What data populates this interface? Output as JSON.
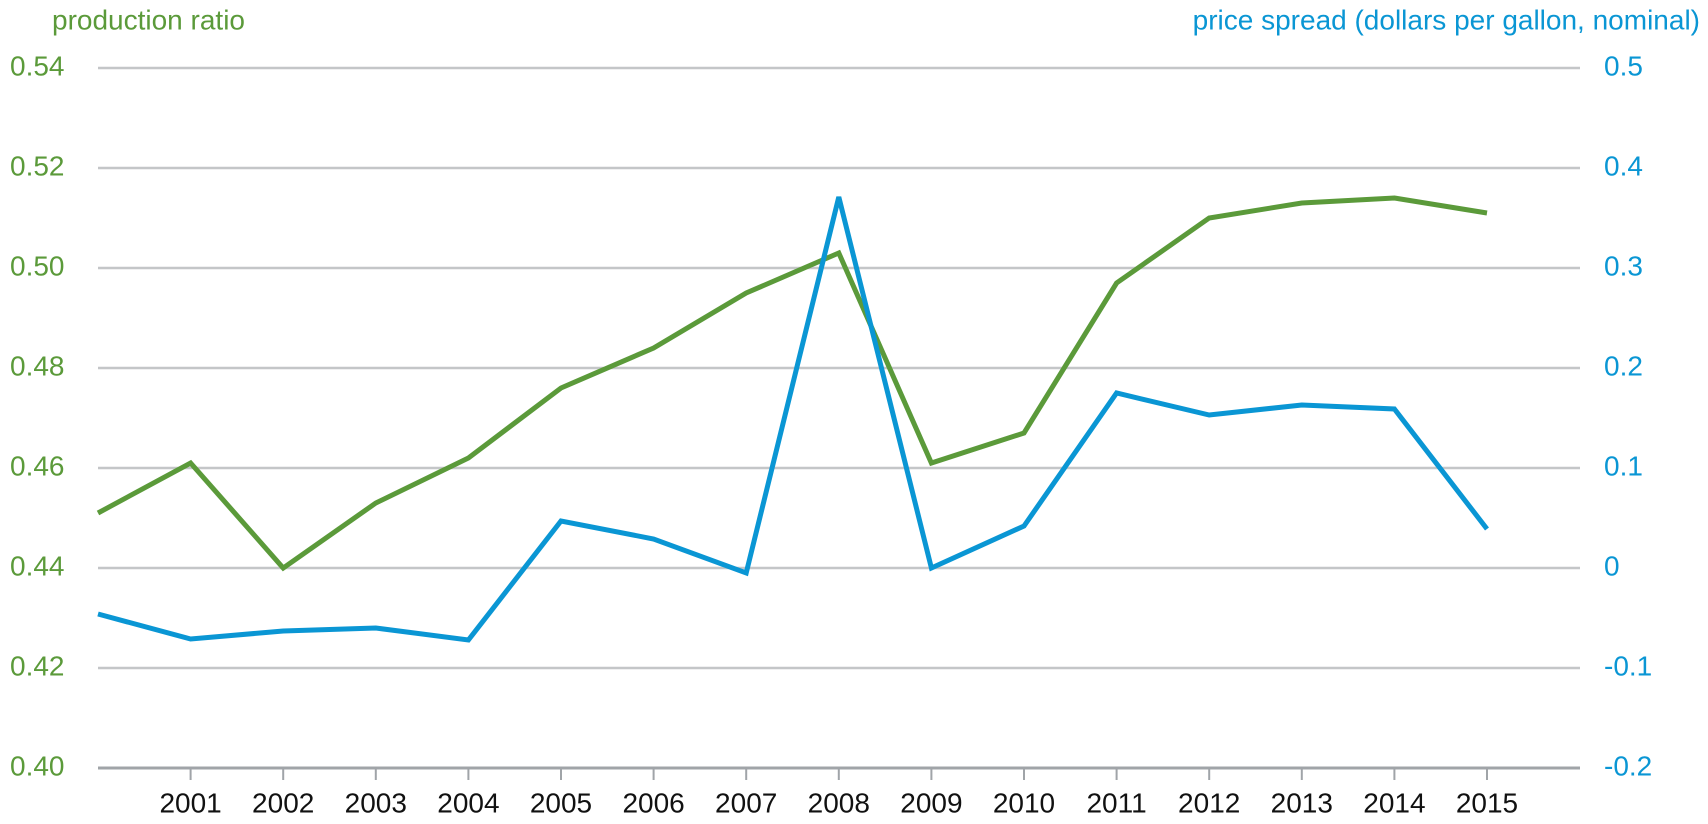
{
  "chart_data": {
    "type": "line",
    "y_label": "production ratio",
    "y2_label": "price spread (dollars per gallon, nominal)",
    "categories": [
      null,
      "2001",
      "2002",
      "2003",
      "2004",
      "2005",
      "2006",
      "2007",
      "2008",
      "2009",
      "2010",
      "2011",
      "2012",
      "2013",
      "2014",
      "2015"
    ],
    "series": [
      {
        "name": "production ratio",
        "color": "#5b9a3a",
        "axis": "y",
        "values": [
          0.451,
          0.461,
          0.44,
          0.453,
          0.462,
          0.476,
          0.484,
          0.495,
          0.503,
          0.461,
          0.467,
          0.497,
          0.51,
          0.513,
          0.514,
          0.511
        ]
      },
      {
        "name": "price spread",
        "color": "#0a96d4",
        "axis": "y2",
        "values": [
          -0.046,
          -0.071,
          -0.063,
          -0.06,
          -0.072,
          0.047,
          0.029,
          -0.005,
          0.371,
          0.0,
          0.042,
          0.175,
          0.153,
          0.163,
          0.159,
          0.039
        ]
      }
    ],
    "ylim": [
      0.4,
      0.54
    ],
    "yticks": [
      {
        "value": 0.4,
        "label": "0.40"
      },
      0.42,
      0.44,
      0.46,
      0.48,
      {
        "value": 0.5,
        "label": "0.50"
      },
      0.52,
      0.54
    ],
    "y2lim": [
      -0.2,
      0.5
    ],
    "y2ticks": [
      -0.2,
      -0.1,
      0,
      0.1,
      0.2,
      0.3,
      0.4,
      0.5
    ],
    "grid": true
  }
}
